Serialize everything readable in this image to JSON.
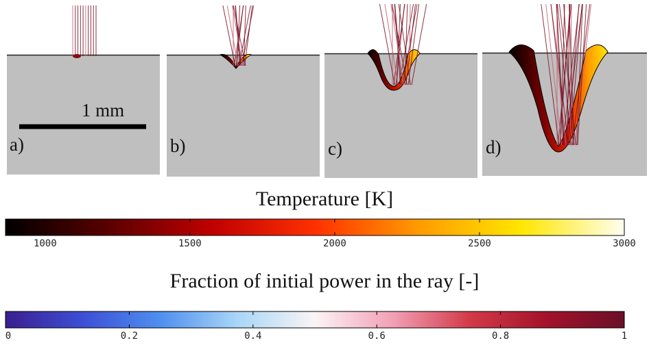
{
  "panels": [
    {
      "label": "a)"
    },
    {
      "label": "b)"
    },
    {
      "label": "c)"
    },
    {
      "label": "d)"
    }
  ],
  "scale_bar": {
    "label": "1 mm"
  },
  "colorbars": [
    {
      "title": "Temperature [K]",
      "range": [
        863,
        3000
      ],
      "ticks": [
        1000,
        1500,
        2000,
        2500,
        3000
      ],
      "colors": [
        "#000000",
        "#5a0000",
        "#c00000",
        "#ff3000",
        "#ff9a00",
        "#ffe600",
        "#fffff0"
      ]
    },
    {
      "title": "Fraction of initial power in the ray [-]",
      "range": [
        0,
        1
      ],
      "ticks": [
        0,
        0.2,
        0.4,
        0.6,
        0.8,
        1
      ],
      "colors": [
        "#3a1f8f",
        "#3d4fd6",
        "#4f8fef",
        "#a9d6f7",
        "#fbf4f6",
        "#f2a0b6",
        "#d23a48",
        "#a3122b",
        "#6a0f28"
      ]
    }
  ]
}
